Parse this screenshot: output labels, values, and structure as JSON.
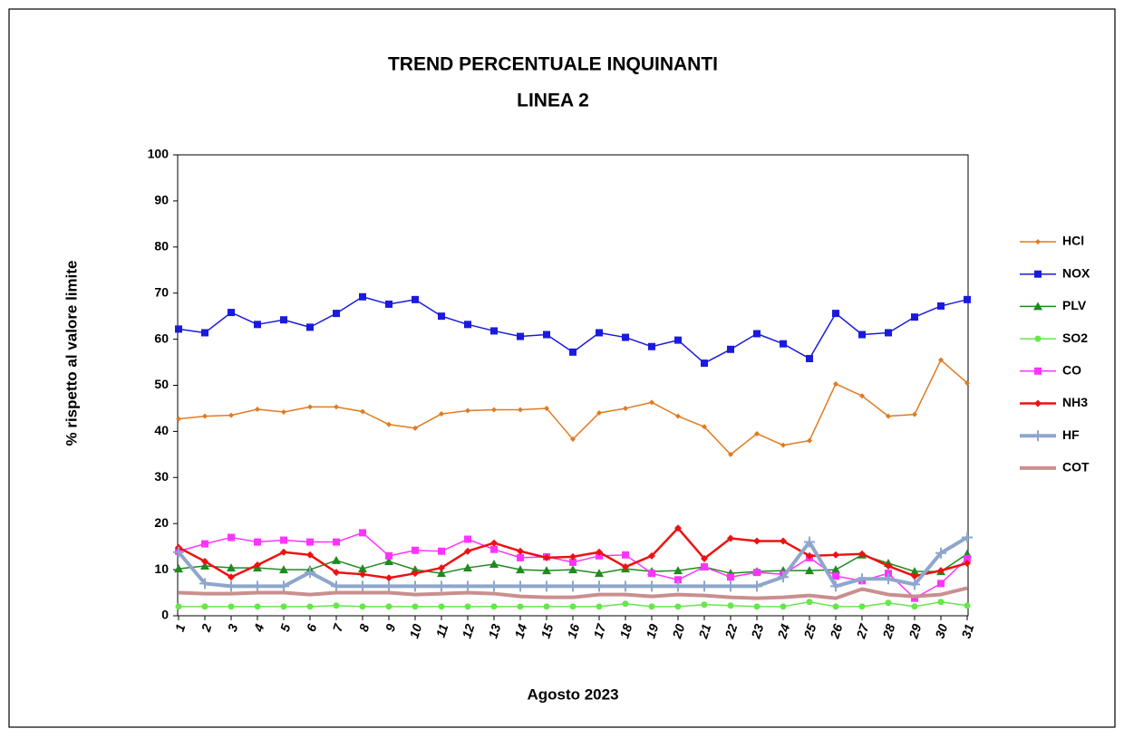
{
  "chart_data": {
    "type": "line",
    "title": "TREND PERCENTUALE  INQUINANTI",
    "subtitle": "LINEA 2",
    "x_label": "Agosto 2023",
    "y_label": "% rispetto al valore limite",
    "categories": [
      "1",
      "2",
      "3",
      "4",
      "5",
      "6",
      "7",
      "8",
      "9",
      "10",
      "11",
      "12",
      "13",
      "14",
      "15",
      "16",
      "17",
      "18",
      "19",
      "20",
      "21",
      "22",
      "23",
      "24",
      "25",
      "26",
      "27",
      "28",
      "29",
      "30",
      "31"
    ],
    "ylim": [
      0,
      100
    ],
    "yticks": [
      0,
      10,
      20,
      30,
      40,
      50,
      60,
      70,
      80,
      90,
      100
    ],
    "legend": "right",
    "series": [
      {
        "name": "HCl",
        "color": "#e07b20",
        "marker": "diamond",
        "width": 1.5,
        "values": [
          42.7,
          43.3,
          43.5,
          44.8,
          44.2,
          45.3,
          45.3,
          44.3,
          41.5,
          40.7,
          43.8,
          44.5,
          44.7,
          44.7,
          45.0,
          38.3,
          44.0,
          45.0,
          46.3,
          43.3,
          41.0,
          35.0,
          39.5,
          37.0,
          38.0,
          50.3,
          47.7,
          43.3,
          43.7,
          55.5,
          50.5
        ]
      },
      {
        "name": "NOX",
        "color": "#1a1adf",
        "marker": "square",
        "width": 1.5,
        "values": [
          62.2,
          61.4,
          65.8,
          63.2,
          64.2,
          62.6,
          65.6,
          69.2,
          67.6,
          68.6,
          65.0,
          63.2,
          61.8,
          60.6,
          61.0,
          57.2,
          61.4,
          60.4,
          58.4,
          59.8,
          54.8,
          57.8,
          61.2,
          59.0,
          55.8,
          65.6,
          61.0,
          61.4,
          64.8,
          67.2,
          68.6
        ]
      },
      {
        "name": "PLV",
        "color": "#1f8a1f",
        "marker": "triangle",
        "width": 1.5,
        "values": [
          10.2,
          10.8,
          10.4,
          10.4,
          10.0,
          10.0,
          12.0,
          10.2,
          11.8,
          10.0,
          9.2,
          10.4,
          11.2,
          10.0,
          9.8,
          10.0,
          9.2,
          10.2,
          9.6,
          9.8,
          10.6,
          9.2,
          9.6,
          9.8,
          9.8,
          10.0,
          13.2,
          11.4,
          9.6,
          9.6,
          13.4
        ]
      },
      {
        "name": "SO2",
        "color": "#66e64d",
        "marker": "circle",
        "width": 1.5,
        "values": [
          2.0,
          2.0,
          2.0,
          2.0,
          2.0,
          2.0,
          2.2,
          2.0,
          2.0,
          2.0,
          2.0,
          2.0,
          2.0,
          2.0,
          2.0,
          2.0,
          2.0,
          2.6,
          2.0,
          2.0,
          2.4,
          2.2,
          2.0,
          2.0,
          3.0,
          2.0,
          2.0,
          2.8,
          2.0,
          3.0,
          2.2
        ]
      },
      {
        "name": "CO",
        "color": "#ff33ff",
        "marker": "square",
        "width": 1.5,
        "values": [
          14.0,
          15.6,
          17.0,
          16.0,
          16.4,
          16.0,
          16.0,
          18.0,
          13.0,
          14.2,
          14.0,
          16.6,
          14.4,
          12.6,
          12.8,
          11.6,
          13.0,
          13.2,
          9.2,
          7.8,
          10.6,
          8.4,
          9.4,
          9.0,
          12.6,
          8.6,
          7.6,
          9.2,
          3.8,
          7.0,
          12.4
        ]
      },
      {
        "name": "NH3",
        "color": "#ee1111",
        "marker": "diamond",
        "width": 2.5,
        "values": [
          14.8,
          11.8,
          8.4,
          11.0,
          13.8,
          13.2,
          9.4,
          9.0,
          8.2,
          9.2,
          10.4,
          14.0,
          15.8,
          14.0,
          12.6,
          12.8,
          13.8,
          10.6,
          13.0,
          19.0,
          12.4,
          16.8,
          16.2,
          16.2,
          13.0,
          13.2,
          13.4,
          10.8,
          8.6,
          9.8,
          11.4
        ]
      },
      {
        "name": "HF",
        "color": "#8ea6cc",
        "marker": "plus",
        "width": 4,
        "values": [
          13.8,
          7.0,
          6.4,
          6.4,
          6.4,
          9.4,
          6.4,
          6.4,
          6.4,
          6.4,
          6.4,
          6.4,
          6.4,
          6.4,
          6.4,
          6.4,
          6.4,
          6.4,
          6.4,
          6.4,
          6.4,
          6.4,
          6.4,
          8.4,
          16.0,
          6.4,
          8.0,
          8.0,
          6.8,
          13.6,
          17.0
        ]
      },
      {
        "name": "COT",
        "color": "#c98f8f",
        "marker": "none",
        "width": 4,
        "values": [
          5.0,
          4.8,
          4.8,
          5.0,
          5.0,
          4.6,
          5.0,
          5.0,
          5.0,
          4.6,
          4.8,
          5.0,
          4.8,
          4.2,
          4.0,
          4.0,
          4.6,
          4.6,
          4.2,
          4.6,
          4.4,
          4.0,
          3.8,
          4.0,
          4.4,
          3.8,
          5.8,
          4.6,
          4.2,
          4.6,
          6.0
        ]
      }
    ]
  }
}
